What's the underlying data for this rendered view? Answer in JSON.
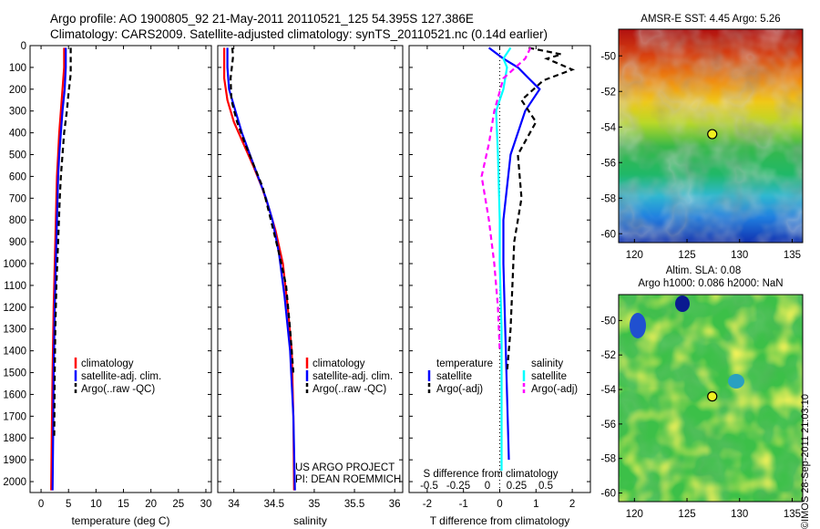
{
  "header": {
    "line1": "Argo profile: AO 1900805_92 21-May-2011 20110521_125 54.395S 127.386E",
    "line2": "Climatology: CARS2009. Satellite-adjusted climatology: synTS_20110521.nc (0.14d earlier)"
  },
  "credit": "©IMOS 28-Sep-2011 21:03:10",
  "colors": {
    "climatology": "#ff0000",
    "satellite": "#0000ff",
    "argo": "#000000",
    "sal_satellite": "#00ffff",
    "sal_argo": "#ff00ff"
  },
  "chart_data": [
    {
      "type": "line",
      "xlabel": "temperature (deg C)",
      "ylabel": "",
      "xlim": [
        -2,
        31
      ],
      "ylim": [
        2050,
        0
      ],
      "xticks": [
        0,
        5,
        10,
        15,
        20,
        25,
        30
      ],
      "yticks": [
        0,
        100,
        200,
        300,
        400,
        500,
        600,
        700,
        800,
        900,
        1000,
        1100,
        1200,
        1300,
        1400,
        1500,
        1600,
        1700,
        1800,
        1900,
        2000
      ],
      "legend": {
        "position": "lower-middle",
        "entries": [
          "climatology",
          "satellite-adj. clim.",
          "Argo(..raw -QC)"
        ]
      },
      "series": [
        {
          "name": "climatology",
          "color": "#ff0000",
          "dash": "",
          "x": [
            4.2,
            4.2,
            3.9,
            3.6,
            3.3,
            3.1,
            2.9,
            2.7,
            2.5,
            2.3,
            2.1,
            1.95,
            1.85
          ],
          "y": [
            10,
            100,
            200,
            300,
            400,
            500,
            600,
            800,
            1000,
            1200,
            1500,
            1800,
            2040
          ]
        },
        {
          "name": "satellite-adj. clim.",
          "color": "#0000ff",
          "dash": "",
          "x": [
            4.5,
            4.5,
            4.3,
            3.9,
            3.6,
            3.3,
            3.1,
            2.9,
            2.7,
            2.5,
            2.3,
            2.2,
            2.1
          ],
          "y": [
            10,
            100,
            200,
            300,
            400,
            500,
            600,
            800,
            1000,
            1200,
            1500,
            1800,
            2040
          ]
        },
        {
          "name": "Argo(..raw -QC)",
          "color": "#000000",
          "dash": "6,4",
          "x": [
            5.4,
            5.4,
            5.0,
            4.7,
            4.2,
            3.9,
            3.6,
            3.4,
            3.1,
            2.8,
            2.6,
            2.5,
            2.4
          ],
          "y": [
            10,
            130,
            220,
            300,
            400,
            500,
            600,
            700,
            900,
            1100,
            1300,
            1500,
            1800
          ]
        }
      ]
    },
    {
      "type": "line",
      "xlabel": "salinity",
      "ylabel": "",
      "xlim": [
        33.8,
        36.1
      ],
      "ylim": [
        2050,
        0
      ],
      "xticks": [
        34,
        34.5,
        35,
        35.5,
        36
      ],
      "legend": {
        "position": "lower-middle",
        "entries": [
          "climatology",
          "satellite-adj. clim.",
          "Argo(..raw -QC)"
        ]
      },
      "annotation": [
        "US ARGO PROJECT",
        "PI: DEAN ROEMMICH"
      ],
      "series": [
        {
          "name": "climatology",
          "color": "#ff0000",
          "dash": "",
          "x": [
            33.88,
            33.88,
            33.92,
            34.0,
            34.12,
            34.24,
            34.35,
            34.44,
            34.52,
            34.61,
            34.67,
            34.72,
            34.74,
            34.75
          ],
          "y": [
            10,
            150,
            250,
            350,
            450,
            550,
            650,
            750,
            850,
            1000,
            1200,
            1400,
            1700,
            2040
          ]
        },
        {
          "name": "satellite-adj. clim.",
          "color": "#0000ff",
          "dash": "",
          "x": [
            33.92,
            33.92,
            33.94,
            34.02,
            34.1,
            34.2,
            34.3,
            34.4,
            34.48,
            34.56,
            34.63,
            34.7,
            34.74,
            34.76
          ],
          "y": [
            10,
            100,
            200,
            300,
            400,
            500,
            600,
            700,
            800,
            950,
            1150,
            1400,
            1700,
            2040
          ]
        },
        {
          "name": "Argo(..raw -QC)",
          "color": "#000000",
          "dash": "6,4",
          "x": [
            33.98,
            33.99,
            33.96,
            33.97,
            34.04,
            34.14,
            34.25,
            34.36,
            34.46,
            34.56,
            34.65,
            34.7,
            34.74
          ],
          "y": [
            10,
            50,
            150,
            250,
            350,
            450,
            550,
            650,
            800,
            950,
            1100,
            1300,
            1500
          ]
        }
      ]
    },
    {
      "type": "line",
      "xlabel": "T difference from climatology",
      "ylabel": "",
      "title": "S difference from climatology",
      "xlim": [
        -2.5,
        2.5
      ],
      "ylim": [
        2050,
        0
      ],
      "xticks": [
        -2,
        -1,
        0,
        1,
        2
      ],
      "top_ticks": {
        "values": [
          -0.5,
          -0.25,
          0,
          0.25,
          0.5
        ],
        "labels": [
          "-0.5",
          "-0.25",
          "0",
          "0.25",
          "0.5"
        ]
      },
      "legend": {
        "position": "lower-middle",
        "group_titles": [
          "temperature",
          "salinity"
        ],
        "entries": [
          "satellite",
          "Argo(-adj)",
          "satellite",
          "Argo(-adj)"
        ]
      },
      "series": [
        {
          "name": "temperature satellite",
          "color": "#0000ff",
          "dash": "",
          "x": [
            -0.3,
            0.1,
            0.5,
            0.8,
            1.1,
            0.9,
            0.7,
            0.3,
            0.1,
            0.1,
            0.15,
            0.2,
            0.25
          ],
          "y": [
            10,
            60,
            100,
            150,
            200,
            250,
            300,
            500,
            800,
            1000,
            1300,
            1600,
            1900
          ]
        },
        {
          "name": "temperature Argo(-adj)",
          "color": "#000000",
          "dash": "6,4",
          "x": [
            0.8,
            1.7,
            1.3,
            2.0,
            1.2,
            0.6,
            1.0,
            0.5,
            0.6,
            0.4,
            0.35,
            0.3,
            0.2
          ],
          "y": [
            10,
            40,
            60,
            110,
            160,
            250,
            350,
            500,
            700,
            900,
            1100,
            1300,
            1500
          ]
        },
        {
          "name": "salinity satellite",
          "color": "#00ffff",
          "dash": "",
          "x": [
            0.3,
            0.1,
            0.2,
            0.1,
            -0.1,
            -0.05,
            0,
            0,
            0.05,
            0.05,
            0.05
          ],
          "y": [
            10,
            60,
            100,
            200,
            300,
            500,
            800,
            1000,
            1300,
            1600,
            1950
          ]
        },
        {
          "name": "salinity Argo(-adj)",
          "color": "#ff00ff",
          "dash": "6,4",
          "x": [
            0.85,
            0.7,
            0.1,
            -0.15,
            -0.3,
            -0.5,
            -0.4,
            -0.3,
            -0.15,
            -0.05,
            0
          ],
          "y": [
            10,
            60,
            150,
            300,
            450,
            600,
            700,
            800,
            1000,
            1200,
            1400
          ]
        }
      ]
    }
  ],
  "maps": [
    {
      "title": "AMSR-E SST: 4.45  Argo: 5.26",
      "xticks": [
        120,
        125,
        130,
        135
      ],
      "yticks": [
        -50,
        -52,
        -54,
        -56,
        -58,
        -60
      ],
      "xlim": [
        118.5,
        136
      ],
      "ylim": [
        -60.5,
        -48.5
      ],
      "marker": {
        "lon": 127.4,
        "lat": -54.4
      }
    },
    {
      "title1": "Altim. SLA: 0.08",
      "title2": "Argo h1000: 0.086 h2000: NaN",
      "xticks": [
        120,
        125,
        130,
        135
      ],
      "yticks": [
        -50,
        -52,
        -54,
        -56,
        -58,
        -60
      ],
      "xlim": [
        118.5,
        136
      ],
      "ylim": [
        -60.5,
        -48.5
      ],
      "marker": {
        "lon": 127.4,
        "lat": -54.4
      }
    }
  ]
}
